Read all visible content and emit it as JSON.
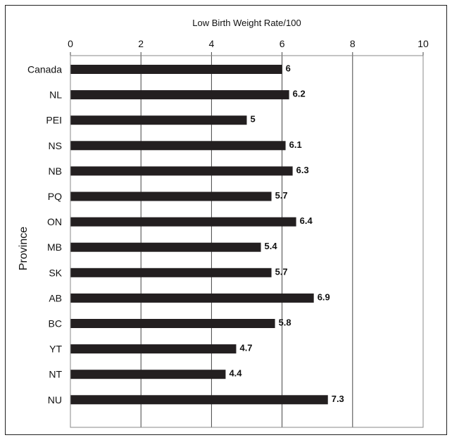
{
  "chart_data": {
    "type": "bar",
    "orientation": "horizontal",
    "xlabel": "Low Birth Weight Rate/100",
    "ylabel": "Province",
    "xlim": [
      0,
      10
    ],
    "xticks": [
      0,
      2,
      4,
      6,
      8,
      10
    ],
    "xaxis_position": "top",
    "grid": "vertical",
    "categories": [
      "Canada",
      "NL",
      "PEI",
      "NS",
      "NB",
      "PQ",
      "ON",
      "MB",
      "SK",
      "AB",
      "BC",
      "YT",
      "NT",
      "NU"
    ],
    "values": [
      6,
      6.2,
      5,
      6.1,
      6.3,
      5.7,
      6.4,
      5.4,
      5.7,
      6.9,
      5.8,
      4.7,
      4.4,
      7.3
    ],
    "value_labels": [
      "6",
      "6.2",
      "5",
      "6.1",
      "6.3",
      "5.7",
      "6.4",
      "5.4",
      "5.7",
      "6.9",
      "5.8",
      "4.7",
      "4.4",
      "7.3"
    ],
    "bar_color": "#231f20",
    "legend": "none"
  }
}
